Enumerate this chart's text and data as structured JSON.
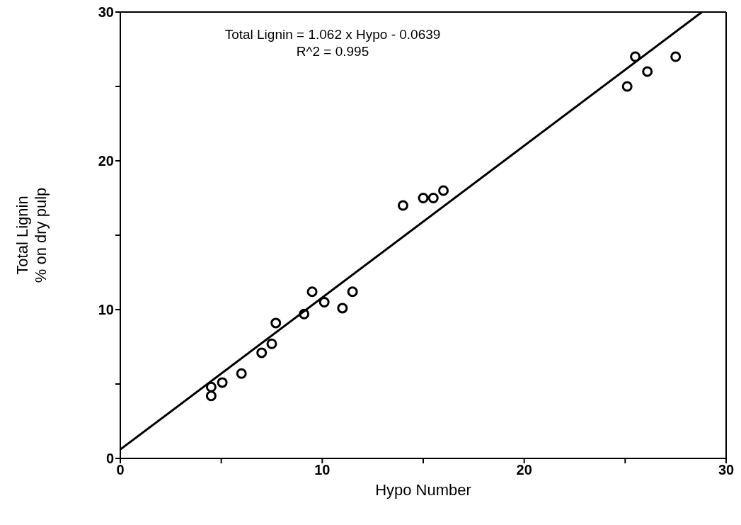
{
  "chart_data": {
    "type": "scatter",
    "xlabel": "Hypo Number",
    "ylabel": "Total Lignin\n% on dry pulp",
    "annotations": [
      "Total Lignin = 1.062 x Hypo - 0.0639",
      "R^2 = 0.995"
    ],
    "xlim": [
      0,
      30
    ],
    "ylim": [
      0,
      30
    ],
    "xticks": [
      0,
      {
        "value": 5,
        "label": null
      },
      10,
      {
        "value": 15,
        "label": null
      },
      20,
      {
        "value": 25,
        "label": null
      },
      30
    ],
    "yticks": [
      0,
      {
        "value": 5,
        "label": null
      },
      10,
      {
        "value": 15,
        "label": null
      },
      20,
      {
        "value": 25,
        "label": null
      },
      30
    ],
    "grid": false,
    "legend": false,
    "series": [
      {
        "marker": "circle",
        "color": "#000000",
        "x": [
          4.5,
          4.5,
          5.05,
          6.0,
          7.0,
          7.5,
          7.7,
          9.1,
          9.5,
          10.1,
          11.0,
          11.5,
          14.0,
          15.0,
          15.5,
          16.0,
          25.1,
          25.5,
          26.1,
          27.5
        ],
        "values": [
          4.2,
          4.8,
          5.1,
          5.7,
          7.1,
          7.7,
          9.1,
          9.7,
          11.2,
          10.5,
          10.1,
          11.2,
          17.0,
          17.5,
          17.5,
          18.0,
          25.0,
          27.0,
          26.0,
          27.0
        ]
      },
      {
        "type": "line",
        "marker": "none",
        "color": "#000000",
        "x": [
          0,
          28.8
        ],
        "values": [
          0.6,
          30
        ]
      }
    ]
  }
}
